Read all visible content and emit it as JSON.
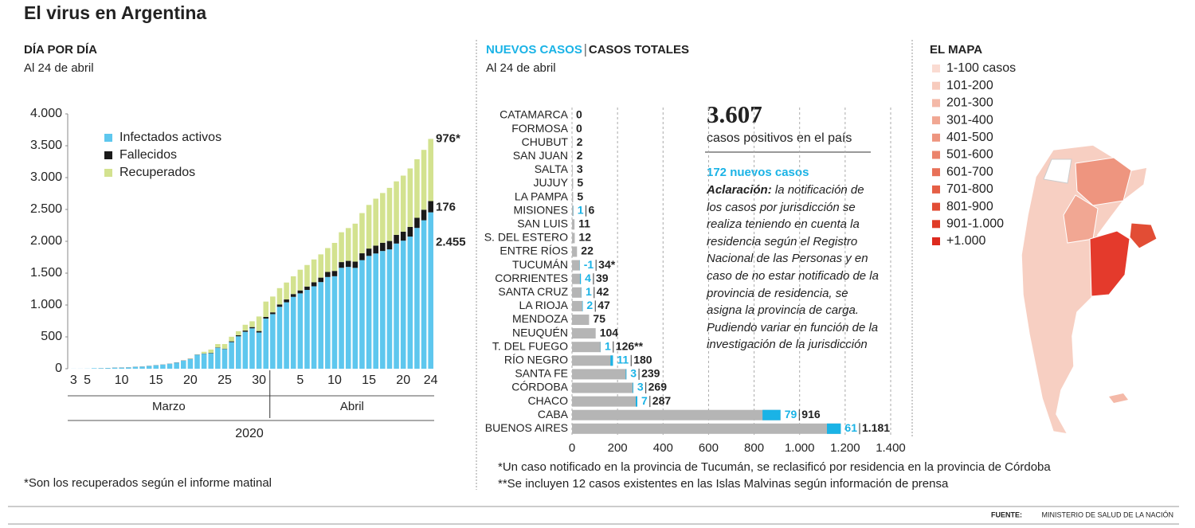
{
  "title": "El virus en Argentina",
  "chart_data": [
    {
      "type": "stacked_bar",
      "title": "DÍA POR DÍA",
      "subtitle": "Al 24 de abril",
      "categories": [
        "3",
        null,
        "5",
        null,
        null,
        null,
        null,
        "10",
        null,
        null,
        null,
        null,
        "15",
        null,
        null,
        null,
        null,
        "20",
        null,
        null,
        null,
        null,
        "25",
        null,
        null,
        null,
        null,
        "30",
        null,
        null,
        null,
        null,
        null,
        "5",
        null,
        null,
        null,
        null,
        "10",
        null,
        null,
        null,
        null,
        "15",
        null,
        null,
        null,
        null,
        "20",
        null,
        null,
        null,
        "24"
      ],
      "x_groups": [
        "Marzo",
        "Abril"
      ],
      "x_group_title": "2020",
      "series": [
        {
          "name": "Infectados activos",
          "color": "#5ec7ee",
          "values": [
            1,
            1,
            2,
            8,
            8,
            11,
            15,
            17,
            19,
            29,
            32,
            43,
            54,
            63,
            77,
            94,
            125,
            151,
            218,
            235,
            243,
            329,
            309,
            418,
            509,
            580,
            634,
            569,
            787,
            857,
            972,
            1043,
            1128,
            1183,
            1237,
            1294,
            1360,
            1440,
            1452,
            1584,
            1598,
            1583,
            1704,
            1771,
            1809,
            1848,
            1873,
            1965,
            2010,
            2074,
            2210,
            2330,
            2455
          ],
          "value_labels": [
            null,
            null,
            null,
            null,
            null,
            null,
            null,
            null,
            null,
            null,
            null,
            null,
            null,
            null,
            null,
            null,
            null,
            null,
            null,
            null,
            null,
            null,
            null,
            null,
            null,
            null,
            null,
            null,
            null,
            null,
            null,
            null,
            null,
            null,
            null,
            null,
            null,
            null,
            null,
            null,
            null,
            null,
            null,
            null,
            null,
            null,
            null,
            null,
            null,
            null,
            null,
            null,
            "2.455"
          ]
        },
        {
          "name": "Fallecidos",
          "color": "#1a1a1a",
          "values": [
            0,
            0,
            0,
            0,
            1,
            1,
            2,
            2,
            2,
            2,
            2,
            2,
            2,
            2,
            2,
            3,
            3,
            4,
            4,
            4,
            6,
            6,
            6,
            12,
            17,
            19,
            20,
            23,
            27,
            28,
            37,
            44,
            44,
            46,
            53,
            63,
            70,
            79,
            83,
            90,
            95,
            98,
            108,
            115,
            123,
            129,
            132,
            136,
            141,
            151,
            159,
            165,
            176
          ],
          "value_labels": [
            null,
            null,
            null,
            null,
            null,
            null,
            null,
            null,
            null,
            null,
            null,
            null,
            null,
            null,
            null,
            null,
            null,
            null,
            null,
            null,
            null,
            null,
            null,
            null,
            null,
            null,
            null,
            null,
            null,
            null,
            null,
            null,
            null,
            null,
            null,
            null,
            null,
            null,
            null,
            null,
            null,
            null,
            null,
            null,
            null,
            null,
            null,
            null,
            null,
            null,
            null,
            null,
            "176"
          ]
        },
        {
          "name": "Recuperados",
          "color": "#d3e28f",
          "values": [
            0,
            0,
            0,
            0,
            0,
            0,
            0,
            0,
            0,
            0,
            0,
            0,
            0,
            0,
            0,
            0,
            0,
            3,
            3,
            27,
            52,
            52,
            72,
            72,
            63,
            91,
            91,
            228,
            240,
            248,
            256,
            266,
            279,
            325,
            338,
            358,
            365,
            375,
            440,
            468,
            515,
            596,
            631,
            685,
            737,
            781,
            834,
            840,
            880,
            919,
            919,
            940,
            976
          ],
          "value_labels": [
            null,
            null,
            null,
            null,
            null,
            null,
            null,
            null,
            null,
            null,
            null,
            null,
            null,
            null,
            null,
            null,
            null,
            null,
            null,
            null,
            null,
            null,
            null,
            null,
            null,
            null,
            null,
            null,
            null,
            null,
            null,
            null,
            null,
            null,
            null,
            null,
            null,
            null,
            null,
            null,
            null,
            null,
            null,
            null,
            null,
            null,
            null,
            null,
            null,
            null,
            null,
            null,
            "976*"
          ]
        }
      ],
      "ylim": [
        0,
        4000
      ],
      "yticks": [
        0,
        500,
        {
          "value": 1000,
          "label": "1.000"
        },
        {
          "value": 1500,
          "label": "1.500"
        },
        {
          "value": 2000,
          "label": "2.000"
        },
        {
          "value": 2500,
          "label": "2.500"
        },
        {
          "value": 3000,
          "label": "3.000"
        },
        {
          "value": 3500,
          "label": "3.500"
        },
        {
          "value": 4000,
          "label": "4.000"
        }
      ],
      "legend": "upper-left",
      "footnote": "*Son los recuperados según el informe matinal"
    },
    {
      "type": "overlay_hbar",
      "subtitle": "Al 24 de abril",
      "categories": [
        "CATAMARCA",
        "FORMOSA",
        "CHUBUT",
        "SAN JUAN",
        "SALTA",
        "JUJUY",
        "LA PAMPA",
        "MISIONES",
        "SAN LUIS",
        "S. DEL ESTERO",
        "ENTRE RÍOS",
        "TUCUMÁN",
        "CORRIENTES",
        "SANTA CRUZ",
        "LA RIOJA",
        "MENDOZA",
        "NEUQUÉN",
        "T. DEL FUEGO",
        "RÍO NEGRO",
        "SANTA FE",
        "CÓRDOBA",
        "CHACO",
        "CABA",
        "BUENOS AIRES"
      ],
      "series": [
        {
          "name": "NUEVOS CASOS",
          "color": "#1ab3e6",
          "values": [
            null,
            null,
            null,
            null,
            null,
            null,
            null,
            1,
            null,
            null,
            null,
            -1,
            4,
            1,
            2,
            null,
            null,
            1,
            11,
            3,
            3,
            7,
            79,
            61
          ]
        },
        {
          "name": "CASOS TOTALES",
          "color": "#b5b5b5",
          "values": [
            0,
            0,
            2,
            2,
            3,
            5,
            5,
            6,
            11,
            12,
            22,
            34,
            39,
            42,
            47,
            75,
            104,
            126,
            180,
            239,
            269,
            287,
            916,
            1181
          ],
          "value_labels": [
            "0",
            "0",
            "2",
            "2",
            "3",
            "5",
            "5",
            "6",
            "11",
            "12",
            "22",
            "34*",
            "39",
            "42",
            "47",
            "75",
            "104",
            "126**",
            "180",
            "239",
            "269",
            "287",
            "916",
            "1.181"
          ]
        }
      ],
      "xlim": [
        0,
        1400
      ],
      "xticks": [
        0,
        200,
        400,
        600,
        800,
        {
          "value": 1000,
          "label": "1.000"
        },
        {
          "value": 1200,
          "label": "1.200"
        },
        {
          "value": 1400,
          "label": "1.400"
        }
      ],
      "grid": true,
      "footnotes": [
        "*Un caso notificado en la provincia de Tucumán, se reclasificó por residencia en la provincia de Córdoba",
        "**Se incluyen 12 casos existentes en las Islas Malvinas según información de prensa"
      ]
    }
  ],
  "summary": {
    "headline": "3.607",
    "headline_caption": "casos positivos en el país",
    "new_cases": "172 nuevos casos",
    "note_label": "Aclaración:",
    "note": "la notificación de los casos por jurisdicción se realiza teniendo en cuenta la residencia según el Registro Nacional de las Personas y en caso de no estar notificado de la provincia de residencia, se asigna la provincia de carga. Pudiendo variar en función de la investigación de la jurisdicción"
  },
  "map": {
    "title": "EL MAPA",
    "legend": [
      {
        "label": "1-100 casos",
        "color": "#fadbd2"
      },
      {
        "label": "101-200",
        "color": "#f7cbbd"
      },
      {
        "label": "201-300",
        "color": "#f4b9a8"
      },
      {
        "label": "301-400",
        "color": "#f1a793"
      },
      {
        "label": "401-500",
        "color": "#ee957f"
      },
      {
        "label": "501-600",
        "color": "#eb836b"
      },
      {
        "label": "601-700",
        "color": "#e87158"
      },
      {
        "label": "701-800",
        "color": "#e55f46"
      },
      {
        "label": "801-900",
        "color": "#e24d35"
      },
      {
        "label": "901-1.000",
        "color": "#e03b27"
      },
      {
        "label": "+1.000",
        "color": "#dd2a1e"
      }
    ]
  },
  "source_label": "FUENTE:",
  "source": "MINISTERIO DE SALUD DE LA NACIÓN"
}
